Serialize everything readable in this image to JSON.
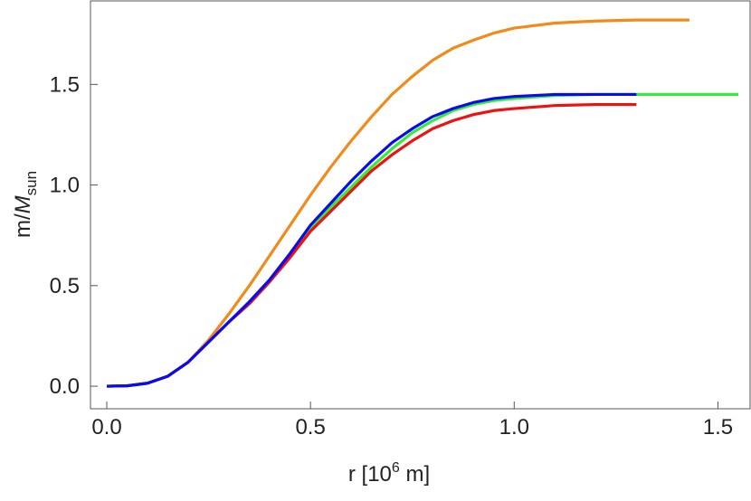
{
  "chart_data": {
    "type": "line",
    "xlabel": [
      "r [10",
      "6",
      " m]"
    ],
    "ylabel": [
      "m/",
      "M",
      "sun"
    ],
    "xlim": [
      -0.04,
      1.579
    ],
    "ylim": [
      -0.112,
      1.915
    ],
    "xticks": [
      {
        "value": 0,
        "label": "0.0"
      },
      0.5,
      {
        "value": 1,
        "label": "1.0"
      },
      1.5
    ],
    "yticks": [
      {
        "value": 0,
        "label": "0.0"
      },
      0.5,
      {
        "value": 1,
        "label": "1.0"
      },
      1.5
    ],
    "series": [
      {
        "color": "#f28a1a",
        "x": [
          0,
          0.05,
          0.1,
          0.15,
          0.2,
          0.25,
          0.3,
          0.35,
          0.4,
          0.45,
          0.5,
          0.55,
          0.6,
          0.65,
          0.7,
          0.75,
          0.8,
          0.85,
          0.9,
          0.95,
          1.0,
          1.1,
          1.2,
          1.3,
          1.43
        ],
        "values": [
          0,
          0.002,
          0.015,
          0.05,
          0.12,
          0.23,
          0.36,
          0.5,
          0.65,
          0.8,
          0.95,
          1.09,
          1.22,
          1.34,
          1.45,
          1.54,
          1.62,
          1.68,
          1.72,
          1.755,
          1.78,
          1.805,
          1.815,
          1.82,
          1.82
        ]
      },
      {
        "color": "#33ee33",
        "x": [
          0,
          0.05,
          0.1,
          0.15,
          0.2,
          0.25,
          0.3,
          0.35,
          0.4,
          0.45,
          0.5,
          0.55,
          0.6,
          0.65,
          0.7,
          0.75,
          0.8,
          0.85,
          0.9,
          0.95,
          1.0,
          1.1,
          1.2,
          1.3,
          1.4,
          1.55
        ],
        "values": [
          0,
          0.002,
          0.015,
          0.05,
          0.12,
          0.22,
          0.32,
          0.41,
          0.52,
          0.65,
          0.78,
          0.89,
          0.99,
          1.09,
          1.18,
          1.26,
          1.32,
          1.37,
          1.4,
          1.42,
          1.43,
          1.445,
          1.45,
          1.45,
          1.45,
          1.45
        ]
      },
      {
        "color": "#ee1111",
        "x": [
          0,
          0.05,
          0.1,
          0.15,
          0.2,
          0.25,
          0.3,
          0.35,
          0.4,
          0.45,
          0.5,
          0.55,
          0.6,
          0.65,
          0.7,
          0.75,
          0.8,
          0.85,
          0.9,
          0.95,
          1.0,
          1.1,
          1.2,
          1.3
        ],
        "values": [
          0,
          0.002,
          0.015,
          0.05,
          0.12,
          0.22,
          0.32,
          0.41,
          0.52,
          0.64,
          0.77,
          0.87,
          0.97,
          1.07,
          1.15,
          1.22,
          1.28,
          1.32,
          1.35,
          1.37,
          1.38,
          1.395,
          1.4,
          1.4
        ]
      },
      {
        "color": "#0a0af0",
        "x": [
          0,
          0.05,
          0.1,
          0.15,
          0.2,
          0.25,
          0.3,
          0.35,
          0.4,
          0.45,
          0.5,
          0.55,
          0.6,
          0.65,
          0.7,
          0.75,
          0.8,
          0.85,
          0.9,
          0.95,
          1.0,
          1.1,
          1.2,
          1.3
        ],
        "values": [
          0,
          0.002,
          0.015,
          0.05,
          0.12,
          0.22,
          0.32,
          0.42,
          0.53,
          0.66,
          0.8,
          0.91,
          1.02,
          1.12,
          1.21,
          1.28,
          1.34,
          1.38,
          1.41,
          1.43,
          1.44,
          1.45,
          1.45,
          1.45
        ]
      }
    ]
  }
}
